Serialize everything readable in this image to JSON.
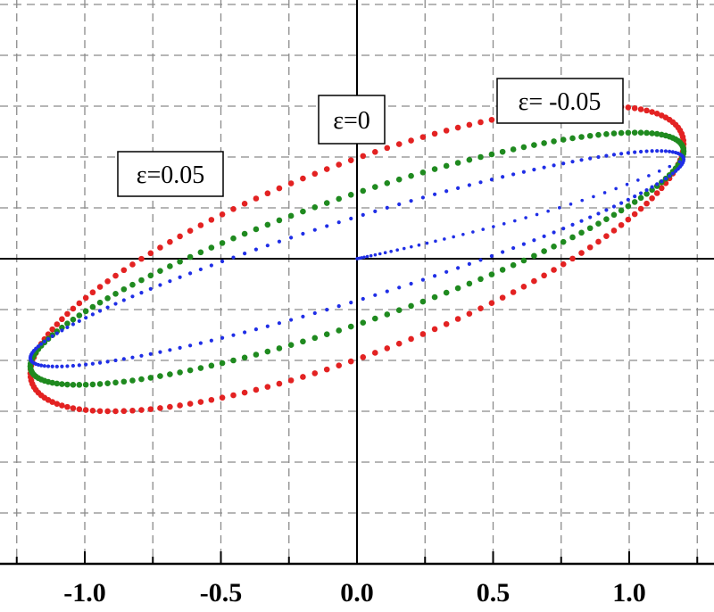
{
  "chart_data": {
    "type": "scatter",
    "title": "",
    "xlabel": "",
    "ylabel": "",
    "xlim": [
      -1.3,
      1.3
    ],
    "ylim": [
      -1.2,
      0.95
    ],
    "x_ticks": [
      -1.0,
      -0.5,
      0.0,
      0.5,
      1.0
    ],
    "x_tick_labels": [
      "-1.0",
      "-0.5",
      "0.0",
      "0.5",
      "1.0"
    ],
    "grid": true,
    "series": [
      {
        "epsilon": 0.05,
        "color": "#e32222",
        "marker": "dot",
        "amplitude_x": 1.2,
        "amplitude_y": 0.75,
        "phase_shift_rad": 0.72
      },
      {
        "epsilon": 0,
        "color": "#1f8a1f",
        "marker": "dot",
        "amplitude_x": 1.2,
        "amplitude_y": 0.62,
        "phase_shift_rad": 0.55
      },
      {
        "epsilon": -0.05,
        "color": "#1f2ee6",
        "marker": "star",
        "amplitude_x": 1.2,
        "amplitude_y": 0.53,
        "phase_shift_rad": 0.4
      }
    ],
    "annotations": [
      {
        "text": "ε=0.05"
      },
      {
        "text": "ε=0"
      },
      {
        "text": "ε= -0.05"
      }
    ]
  }
}
